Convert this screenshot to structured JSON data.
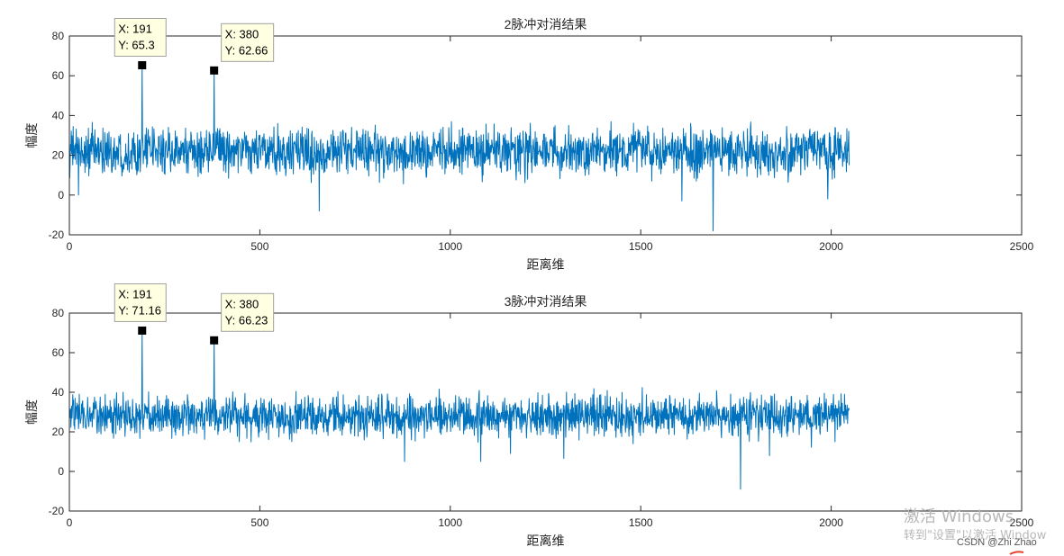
{
  "chart_data": [
    {
      "type": "line",
      "title": "2脉冲对消结果",
      "xlabel": "距离维",
      "ylabel": "幅度",
      "xlim": [
        0,
        2500
      ],
      "ylim": [
        -20,
        80
      ],
      "xticks": [
        "0",
        "500",
        "1000",
        "1500",
        "2000",
        "2500"
      ],
      "yticks": [
        "-20",
        "0",
        "20",
        "40",
        "60",
        "80"
      ],
      "grid": false,
      "series": [
        {
          "color": "#0072BD",
          "n_points": 2048,
          "baseline": 22,
          "noise_spread": 9,
          "peaks": [
            {
              "x": 191,
              "y": 65.3
            },
            {
              "x": 380,
              "y": 62.66
            }
          ],
          "dips": [
            {
              "x": 24,
              "y": 0
            },
            {
              "x": 656,
              "y": -8
            },
            {
              "x": 1608,
              "y": -3
            },
            {
              "x": 1690,
              "y": -18
            },
            {
              "x": 2047,
              "y": 15
            }
          ]
        }
      ],
      "datatips": [
        {
          "x_text": "X: 191",
          "y_text": "Y: 65.3",
          "x": 191,
          "y": 65.3
        },
        {
          "x_text": "X: 380",
          "y_text": "Y: 62.66",
          "x": 380,
          "y": 62.66
        }
      ]
    },
    {
      "type": "line",
      "title": "3脉冲对消结果",
      "xlabel": "距离维",
      "ylabel": "幅度",
      "xlim": [
        0,
        2500
      ],
      "ylim": [
        -20,
        80
      ],
      "xticks": [
        "0",
        "500",
        "1000",
        "1500",
        "2000",
        "2500"
      ],
      "yticks": [
        "-20",
        "0",
        "20",
        "40",
        "60",
        "80"
      ],
      "grid": false,
      "series": [
        {
          "color": "#0072BD",
          "n_points": 2048,
          "baseline": 28,
          "noise_spread": 8,
          "peaks": [
            {
              "x": 191,
              "y": 71.16
            },
            {
              "x": 380,
              "y": 66.23
            }
          ],
          "dips": [
            {
              "x": 880,
              "y": 5
            },
            {
              "x": 1080,
              "y": 5
            },
            {
              "x": 1762,
              "y": -9
            },
            {
              "x": 2010,
              "y": 15
            }
          ]
        }
      ],
      "datatips": [
        {
          "x_text": "X: 191",
          "y_text": "Y: 71.16",
          "x": 191,
          "y": 71.16
        },
        {
          "x_text": "X: 380",
          "y_text": "Y: 66.23",
          "x": 380,
          "y": 66.23
        }
      ]
    }
  ],
  "watermark": {
    "activate": "激活 Windows",
    "settings": "转到\"设置\"以激活 Window",
    "csdn": "CSDN @Zhi Zhao"
  }
}
